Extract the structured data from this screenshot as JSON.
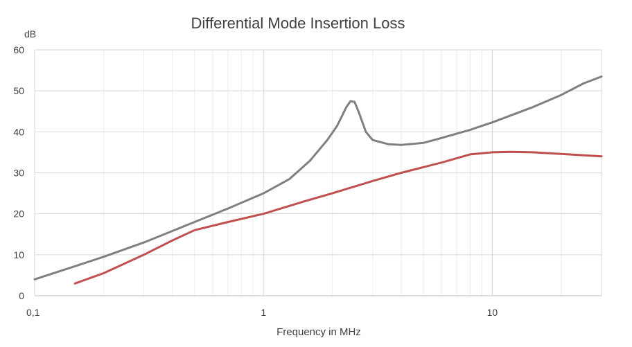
{
  "chart_data": {
    "type": "line",
    "title": "Differential Mode Insertion Loss",
    "ylabel": "dB",
    "xlabel": "Frequency in MHz",
    "xscale": "log",
    "xlim": [
      0.1,
      30
    ],
    "ylim": [
      0,
      60
    ],
    "x_ticks": [
      0.1,
      1,
      10
    ],
    "x_tick_labels": [
      "0,1",
      "1",
      "10"
    ],
    "y_ticks": [
      0,
      10,
      20,
      30,
      40,
      50,
      60
    ],
    "y_tick_labels": [
      "0",
      "10",
      "20",
      "30",
      "40",
      "50",
      "60"
    ],
    "grid": true,
    "legend": "none",
    "series": [
      {
        "color": "#7f7f7f",
        "x": [
          0.1,
          0.15,
          0.2,
          0.3,
          0.5,
          0.7,
          1.0,
          1.3,
          1.6,
          1.9,
          2.1,
          2.3,
          2.4,
          2.5,
          2.6,
          2.8,
          3.0,
          3.5,
          4.0,
          5.0,
          6.0,
          8.0,
          10,
          15,
          20,
          25,
          30
        ],
        "y": [
          4,
          7.2,
          9.5,
          13,
          18,
          21.3,
          25,
          28.5,
          33,
          38,
          41.5,
          46,
          47.5,
          47.3,
          45,
          40,
          38,
          37,
          36.8,
          37.3,
          38.5,
          40.5,
          42.3,
          46,
          49,
          51.8,
          53.5
        ]
      },
      {
        "color": "#c0504d",
        "x": [
          0.15,
          0.2,
          0.3,
          0.4,
          0.5,
          0.7,
          1.0,
          1.5,
          2.0,
          3.0,
          4.0,
          6.0,
          8.0,
          10,
          12,
          15,
          20,
          30
        ],
        "y": [
          3,
          5.5,
          10,
          13.5,
          16,
          18,
          20,
          23,
          25,
          28,
          30,
          32.5,
          34.5,
          35,
          35.1,
          35,
          34.6,
          34
        ]
      }
    ]
  }
}
